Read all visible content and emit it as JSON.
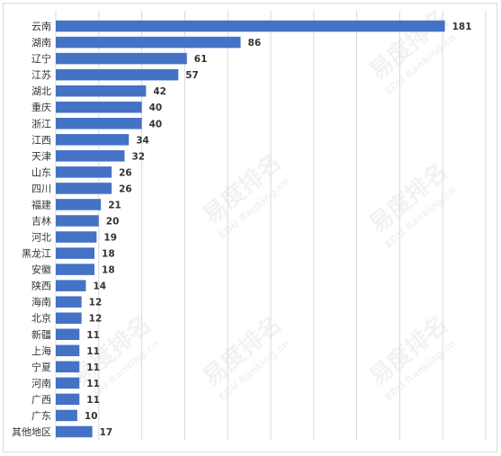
{
  "chart_data": {
    "type": "bar",
    "orientation": "horizontal",
    "categories": [
      "云南",
      "湖南",
      "辽宁",
      "江苏",
      "湖北",
      "重庆",
      "浙江",
      "江西",
      "天津",
      "山东",
      "四川",
      "福建",
      "吉林",
      "河北",
      "黑龙江",
      "安徽",
      "陕西",
      "海南",
      "北京",
      "新疆",
      "上海",
      "宁夏",
      "河南",
      "广西",
      "广东",
      "其他地区"
    ],
    "values": [
      181,
      86,
      61,
      57,
      42,
      40,
      40,
      34,
      32,
      26,
      26,
      21,
      20,
      19,
      18,
      18,
      14,
      12,
      12,
      11,
      11,
      11,
      11,
      11,
      10,
      17
    ],
    "title": "",
    "xlabel": "",
    "ylabel": "",
    "xlim": [
      0,
      200
    ],
    "grid": true,
    "bar_color": "#4472c4",
    "watermark": [
      "易度排名",
      "EDU Ranking.cn"
    ]
  }
}
